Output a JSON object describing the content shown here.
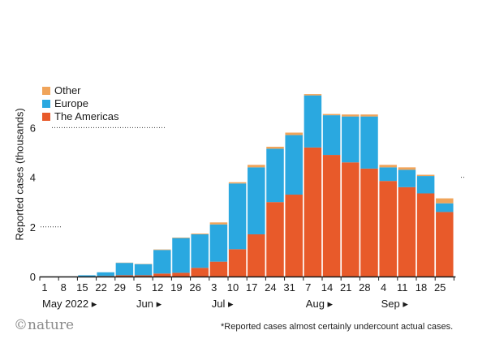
{
  "chart_data": {
    "type": "bar",
    "stacked": true,
    "ylabel": "Reported cases (thousands)",
    "ylim": [
      0,
      8
    ],
    "yticks": [
      "0",
      "2",
      "4",
      "6"
    ],
    "categories": [
      "1",
      "8",
      "15",
      "22",
      "29",
      "5",
      "12",
      "19",
      "26",
      "3",
      "10",
      "17",
      "24",
      "31",
      "7",
      "14",
      "21",
      "28",
      "4",
      "11",
      "18",
      "25"
    ],
    "months": [
      "May 2022 ▸",
      "Jun ▸",
      "Jul ▸",
      "Aug ▸",
      "Sep ▸"
    ],
    "series": [
      {
        "name": "The Americas",
        "color": "#e85a2a",
        "values": [
          0,
          0,
          0,
          0.02,
          0.05,
          0.05,
          0.12,
          0.15,
          0.35,
          0.6,
          1.1,
          1.7,
          3.0,
          3.3,
          5.2,
          4.9,
          4.6,
          4.35,
          3.85,
          3.6,
          3.35,
          2.6
        ]
      },
      {
        "name": "Europe",
        "color": "#2aa8e0",
        "values": [
          0,
          0,
          0.05,
          0.15,
          0.5,
          0.45,
          0.95,
          1.4,
          1.35,
          1.5,
          2.65,
          2.7,
          2.15,
          2.4,
          2.1,
          1.6,
          1.85,
          2.1,
          0.55,
          0.7,
          0.7,
          0.35
        ]
      },
      {
        "name": "Other",
        "color": "#f0a45a",
        "values": [
          0,
          0,
          0,
          0,
          0.01,
          0.01,
          0.02,
          0.02,
          0.03,
          0.08,
          0.05,
          0.1,
          0.08,
          0.1,
          0.05,
          0.05,
          0.08,
          0.08,
          0.1,
          0.1,
          0.05,
          0.2
        ]
      }
    ],
    "legend": [
      "Other",
      "Europe",
      "The Americas"
    ],
    "legend_position": "top-left"
  },
  "footnote": "*Reported cases almost certainly undercount actual cases.",
  "brand": "©nature"
}
